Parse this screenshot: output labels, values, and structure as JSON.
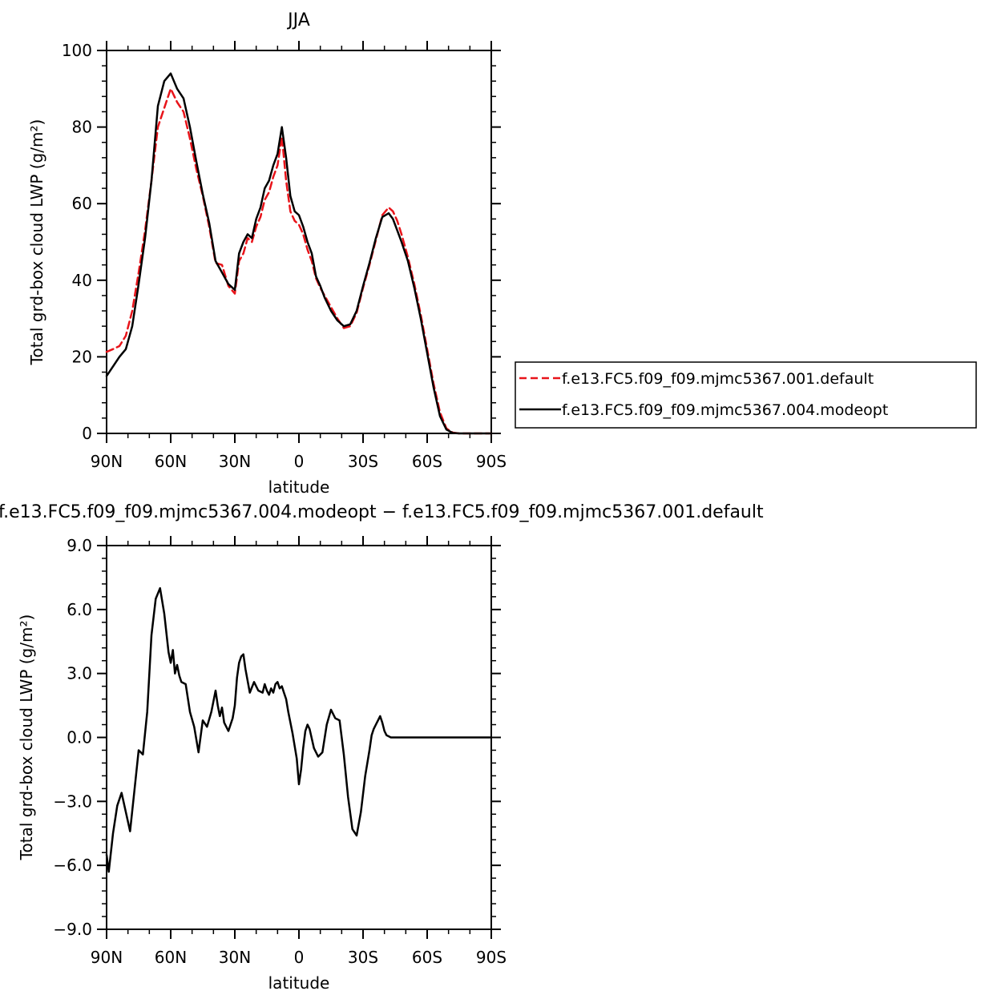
{
  "chart_data": [
    {
      "type": "line",
      "title": "JJA",
      "xlabel": "latitude",
      "ylabel": "Total grd-box cloud LWP (g/m²)",
      "xlim": [
        90,
        -90
      ],
      "ylim": [
        0,
        100
      ],
      "x_ticks": [
        {
          "value": 90,
          "label": "90N"
        },
        {
          "value": 60,
          "label": "60N"
        },
        {
          "value": 30,
          "label": "30N"
        },
        {
          "value": 0,
          "label": "0"
        },
        {
          "value": -30,
          "label": "30S"
        },
        {
          "value": -60,
          "label": "60S"
        },
        {
          "value": -90,
          "label": "90S"
        }
      ],
      "y_ticks": [
        {
          "value": 0,
          "label": "0"
        },
        {
          "value": 20,
          "label": "20"
        },
        {
          "value": 40,
          "label": "40"
        },
        {
          "value": 60,
          "label": "60"
        },
        {
          "value": 80,
          "label": "80"
        },
        {
          "value": 100,
          "label": "100"
        }
      ],
      "grid": false,
      "legend_position": "right",
      "series": [
        {
          "name": "f.e13.FC5.f09_f09.mjmc5367.001.default",
          "color": "#e8141a",
          "dash": "dashed",
          "x": [
            90,
            87,
            84,
            81,
            78,
            75,
            72,
            69,
            66,
            63,
            60,
            57,
            54,
            51,
            48,
            45,
            42,
            39,
            36,
            33,
            30,
            28,
            26,
            24,
            22,
            20,
            18,
            16,
            14,
            12,
            10,
            8,
            6,
            4,
            2,
            0,
            -2,
            -4,
            -6,
            -8,
            -10,
            -12,
            -15,
            -18,
            -21,
            -24,
            -27,
            -30,
            -33,
            -36,
            -39,
            -42,
            -44,
            -46,
            -48,
            -51,
            -54,
            -57,
            -60,
            -63,
            -66,
            -69,
            -72,
            -75,
            -78,
            -81,
            -84,
            -87,
            -90
          ],
          "values": [
            21.3,
            22.0,
            22.8,
            25.5,
            32.0,
            42.0,
            53.0,
            66.0,
            80.0,
            85.0,
            90.0,
            86.5,
            84.0,
            77.0,
            69.0,
            62.0,
            54.0,
            44.5,
            44.0,
            38.5,
            36.5,
            45.0,
            47.0,
            51.0,
            50.0,
            54.0,
            56.5,
            61.0,
            63.0,
            67.0,
            70.0,
            77.5,
            66.0,
            58.0,
            55.5,
            54.5,
            52.0,
            48.0,
            45.0,
            40.5,
            38.0,
            36.0,
            33.0,
            30.0,
            27.5,
            28.0,
            31.5,
            38.0,
            44.0,
            50.5,
            57.0,
            59.0,
            58.0,
            55.5,
            52.0,
            46.0,
            39.0,
            31.0,
            22.0,
            13.0,
            5.5,
            1.3,
            0.2,
            0.0,
            0.0,
            0.0,
            0.0,
            0.0,
            0.0
          ]
        },
        {
          "name": "f.e13.FC5.f09_f09.mjmc5367.004.modeopt",
          "color": "#000000",
          "dash": "solid",
          "x": [
            90,
            87,
            84,
            81,
            78,
            75,
            72,
            69,
            66,
            63,
            60,
            57,
            54,
            51,
            48,
            45,
            42,
            39,
            36,
            33,
            30,
            28,
            26,
            24,
            22,
            20,
            18,
            16,
            14,
            12,
            10,
            8,
            6,
            4,
            2,
            0,
            -2,
            -4,
            -6,
            -8,
            -10,
            -12,
            -15,
            -18,
            -21,
            -24,
            -27,
            -30,
            -33,
            -36,
            -39,
            -42,
            -44,
            -46,
            -48,
            -51,
            -54,
            -57,
            -60,
            -63,
            -66,
            -69,
            -72,
            -75,
            -78,
            -81,
            -84,
            -87,
            -90
          ],
          "values": [
            15.0,
            17.5,
            20.0,
            22.0,
            28.0,
            39.0,
            51.0,
            66.0,
            85.5,
            92.0,
            94.0,
            90.0,
            87.5,
            80.0,
            71.0,
            62.5,
            55.0,
            45.0,
            42.0,
            39.0,
            37.5,
            47.0,
            50.0,
            52.0,
            51.0,
            56.0,
            59.0,
            64.0,
            66.0,
            70.0,
            73.0,
            80.0,
            72.0,
            62.0,
            58.0,
            57.0,
            54.0,
            50.0,
            47.0,
            41.0,
            38.5,
            35.5,
            32.0,
            29.5,
            28.0,
            28.5,
            32.0,
            38.5,
            44.5,
            51.0,
            56.5,
            57.5,
            56.0,
            53.0,
            50.0,
            45.0,
            38.0,
            30.0,
            21.0,
            12.0,
            4.5,
            1.0,
            0.1,
            0.0,
            0.0,
            0.0,
            0.0,
            0.0,
            0.0
          ]
        }
      ]
    },
    {
      "type": "line",
      "title": "f.e13.FC5.f09_f09.mjmc5367.004.modeopt - f.e13.FC5.f09_f09.mjmc5367.001.default",
      "xlabel": "latitude",
      "ylabel": "Total grd-box cloud LWP (g/m²)",
      "xlim": [
        90,
        -90
      ],
      "ylim": [
        -9,
        9
      ],
      "x_ticks": [
        {
          "value": 90,
          "label": "90N"
        },
        {
          "value": 60,
          "label": "60N"
        },
        {
          "value": 30,
          "label": "30N"
        },
        {
          "value": 0,
          "label": "0"
        },
        {
          "value": -30,
          "label": "30S"
        },
        {
          "value": -60,
          "label": "60S"
        },
        {
          "value": -90,
          "label": "90S"
        }
      ],
      "y_ticks": [
        {
          "value": -9,
          "label": "−9.0"
        },
        {
          "value": -6,
          "label": "−6.0"
        },
        {
          "value": -3,
          "label": "−3.0"
        },
        {
          "value": 0,
          "label": "0.0"
        },
        {
          "value": 3,
          "label": "3.0"
        },
        {
          "value": 6,
          "label": "6.0"
        },
        {
          "value": 9,
          "label": "9.0"
        }
      ],
      "grid": false,
      "series": [
        {
          "color": "#000000",
          "dash": "solid",
          "x": [
            90,
            89,
            87,
            85,
            83,
            81,
            79,
            77,
            75,
            73,
            71,
            69,
            67,
            65,
            63,
            61,
            60,
            59,
            58,
            57,
            56,
            55,
            53,
            51,
            49,
            47,
            45,
            43,
            41,
            39,
            38,
            37,
            36,
            35,
            33,
            31,
            30,
            29,
            28,
            27,
            26,
            25,
            23,
            21,
            19,
            17,
            16,
            15,
            14,
            13,
            12,
            11,
            10,
            9,
            8,
            7,
            6,
            5,
            3,
            1,
            0,
            -1,
            -2,
            -3,
            -4,
            -5,
            -7,
            -9,
            -11,
            -13,
            -15,
            -17,
            -19,
            -21,
            -23,
            -25,
            -27,
            -29,
            -31,
            -33,
            -34,
            -35,
            -36,
            -37,
            -38,
            -39,
            -40,
            -41,
            -43,
            -45,
            -46,
            -47,
            -48,
            -50,
            -52,
            -54,
            -56,
            -58,
            -60,
            -62,
            -63,
            -64,
            -65,
            -66,
            -67,
            -68,
            -70,
            -72,
            -75,
            -80,
            -85,
            -90
          ],
          "values": [
            -5.5,
            -6.3,
            -4.5,
            -3.2,
            -2.6,
            -3.5,
            -4.4,
            -2.5,
            -0.6,
            -0.8,
            1.2,
            4.8,
            6.5,
            7.0,
            5.8,
            4.0,
            3.5,
            4.1,
            3.0,
            3.4,
            2.9,
            2.6,
            2.5,
            1.2,
            0.5,
            -0.7,
            0.8,
            0.5,
            1.2,
            2.2,
            1.5,
            1.0,
            1.4,
            0.7,
            0.3,
            0.9,
            1.5,
            2.8,
            3.5,
            3.8,
            3.9,
            3.2,
            2.1,
            2.6,
            2.2,
            2.1,
            2.5,
            2.2,
            2.0,
            2.3,
            2.1,
            2.5,
            2.6,
            2.3,
            2.4,
            2.1,
            1.8,
            1.2,
            0.2,
            -1.0,
            -2.2,
            -1.5,
            -0.5,
            0.3,
            0.6,
            0.4,
            -0.5,
            -0.9,
            -0.7,
            0.6,
            1.3,
            0.9,
            0.8,
            -0.8,
            -2.8,
            -4.3,
            -4.6,
            -3.5,
            -1.8,
            -0.6,
            0.1,
            0.4,
            0.6,
            0.8,
            1.0,
            0.7,
            0.3,
            0.1,
            0.0,
            0.0,
            0.0,
            0.0,
            0.0,
            0.0,
            0.0,
            0.0,
            0.0,
            0.0,
            0.0,
            0.0,
            0.0,
            0.0,
            0.0,
            0.0,
            0.0,
            0.0,
            0.0,
            0.0,
            0.0,
            0.0,
            0.0,
            0.0
          ]
        }
      ]
    }
  ],
  "panels": {
    "top": {
      "title": "JJA",
      "xlabel": "latitude",
      "ylabel": "Total grd-box cloud LWP (g/m²)"
    },
    "bottom": {
      "title": "f.e13.FC5.f09_f09.mjmc5367.004.modeopt − f.e13.FC5.f09_f09.mjmc5367.001.default",
      "xlabel": "latitude",
      "ylabel": "Total grd-box cloud LWP (g/m²)"
    }
  },
  "legend": {
    "items": [
      {
        "label": "f.e13.FC5.f09_f09.mjmc5367.001.default",
        "color": "#e8141a",
        "dash": "dashed"
      },
      {
        "label": "f.e13.FC5.f09_f09.mjmc5367.004.modeopt",
        "color": "#000000",
        "dash": "solid"
      }
    ]
  }
}
